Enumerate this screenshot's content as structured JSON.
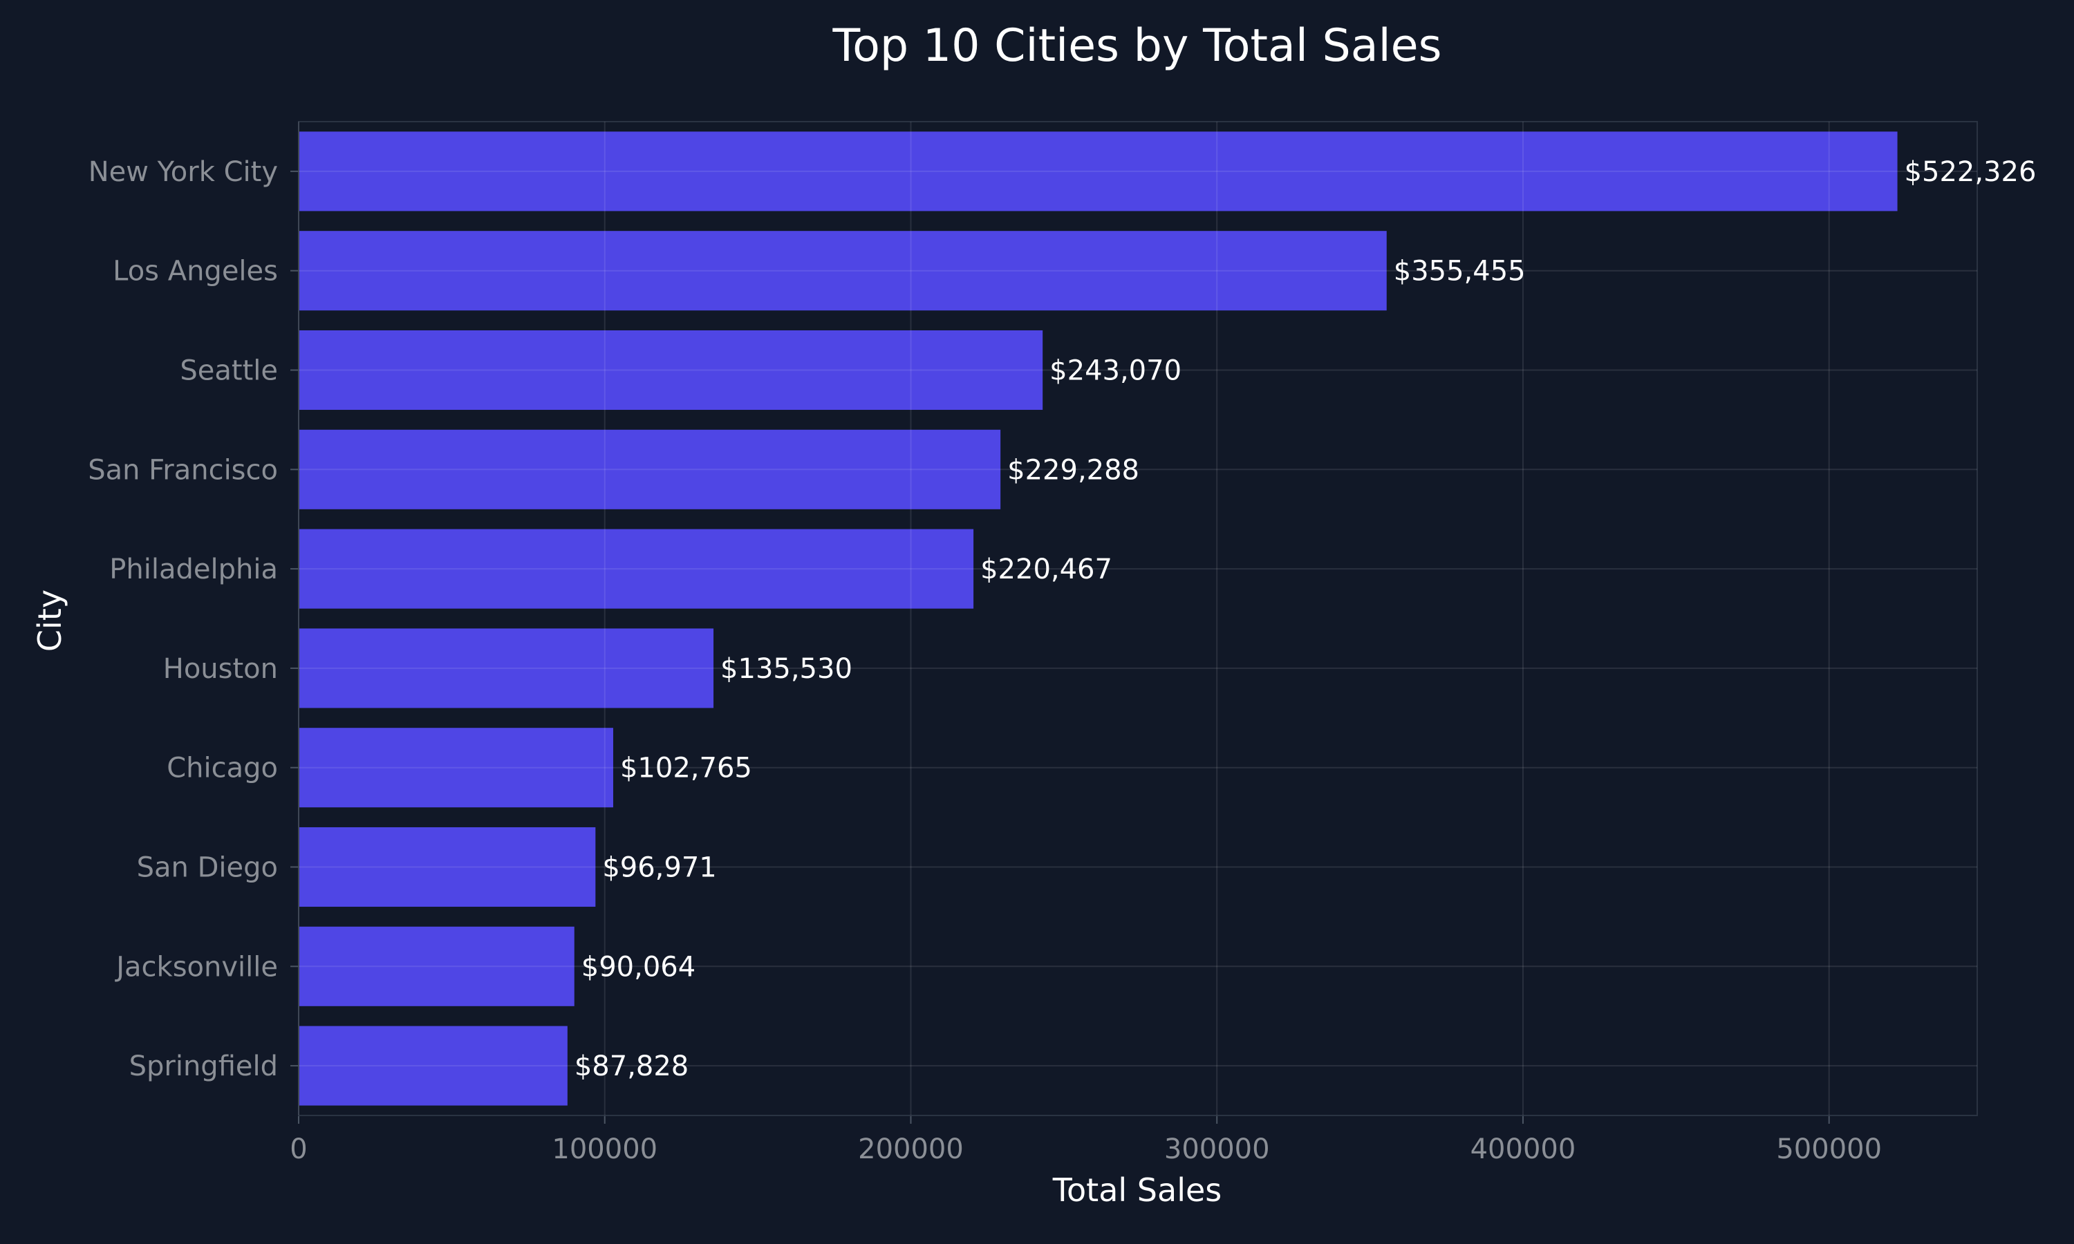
{
  "chart_data": {
    "type": "bar",
    "orientation": "horizontal",
    "title": "Top 10 Cities by Total Sales",
    "xlabel": "Total Sales",
    "ylabel": "City",
    "categories": [
      "New York City",
      "Los Angeles",
      "Seattle",
      "San Francisco",
      "Philadelphia",
      "Houston",
      "Chicago",
      "San Diego",
      "Jacksonville",
      "Springfield"
    ],
    "values": [
      522326,
      355455,
      243070,
      229288,
      220467,
      135530,
      102765,
      96971,
      90064,
      87828
    ],
    "data_labels": [
      "$522,326",
      "$355,455",
      "$243,070",
      "$229,288",
      "$220,467",
      "$135,530",
      "$102,765",
      "$96,971",
      "$90,064",
      "$87,828"
    ],
    "xlim": [
      0,
      548400
    ],
    "xticks": [
      0,
      100000,
      200000,
      300000,
      400000,
      500000
    ],
    "xtick_labels": [
      "0",
      "100000",
      "200000",
      "300000",
      "400000",
      "500000"
    ],
    "grid": true,
    "legend": false,
    "colors": {
      "background": "#111827",
      "bar": "#4f46e5",
      "text": "#ffffff",
      "tick_text": "#8b8f96"
    }
  }
}
